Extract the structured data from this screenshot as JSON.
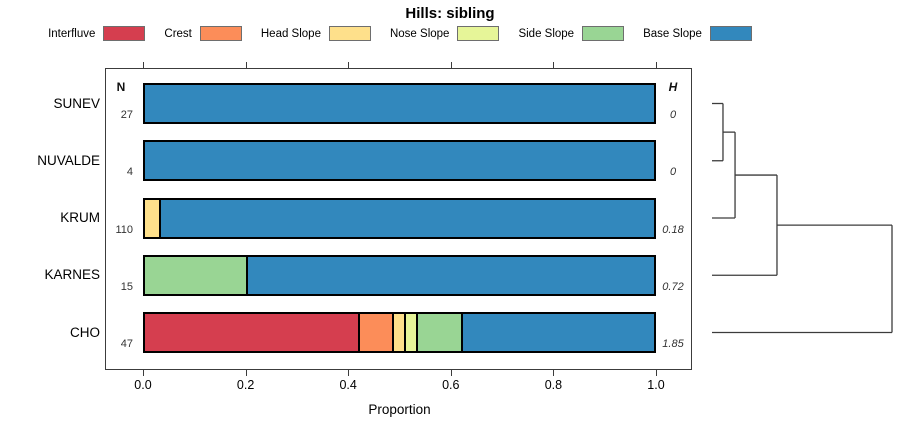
{
  "title": "Hills: sibling",
  "chart_data": {
    "type": "bar",
    "orientation": "horizontal",
    "stacked": true,
    "title": "Hills: sibling",
    "xlabel": "Proportion",
    "xlim": [
      0.0,
      1.0
    ],
    "xticks": [
      0.0,
      0.2,
      0.4,
      0.6,
      0.8,
      1.0
    ],
    "xtick_labels": [
      "0.0",
      "0.2",
      "0.4",
      "0.6",
      "0.8",
      "1.0"
    ],
    "grid": false,
    "legend_position": "top",
    "categories": [
      "SUNEV",
      "NUVALDE",
      "KRUM",
      "KARNES",
      "CHO"
    ],
    "n_header": "N",
    "h_header": "H",
    "n_values": [
      "27",
      "4",
      "110",
      "15",
      "47"
    ],
    "h_values": [
      "0",
      "0",
      "0.18",
      "0.72",
      "1.85"
    ],
    "series": [
      {
        "name": "Interfluve",
        "color": "#D53E4F",
        "values": [
          0,
          0,
          0,
          0,
          0.426
        ]
      },
      {
        "name": "Crest",
        "color": "#FC8D59",
        "values": [
          0,
          0,
          0,
          0,
          0.064
        ]
      },
      {
        "name": "Head Slope",
        "color": "#FEE08B",
        "values": [
          0,
          0,
          0.027,
          0,
          0.021
        ]
      },
      {
        "name": "Nose Slope",
        "color": "#E6F598",
        "values": [
          0,
          0,
          0,
          0,
          0.021
        ]
      },
      {
        "name": "Side Slope",
        "color": "#99D594",
        "values": [
          0,
          0,
          0,
          0.2,
          0.085
        ]
      },
      {
        "name": "Base Slope",
        "color": "#3288BD",
        "values": [
          1,
          1,
          0.973,
          0.8,
          0.383
        ]
      }
    ],
    "dendrogram": {
      "leaves": [
        "SUNEV",
        "NUVALDE",
        "KRUM",
        "KARNES",
        "CHO"
      ],
      "joins": [
        {
          "a": "leaf0",
          "b": "leaf1",
          "height": 0.061
        },
        {
          "a": "join0",
          "b": "leaf2",
          "height": 0.128
        },
        {
          "a": "join1",
          "b": "leaf3",
          "height": 0.361
        },
        {
          "a": "join2",
          "b": "leaf4",
          "height": 1.0
        }
      ],
      "line_color": "#3c3c3c"
    }
  }
}
